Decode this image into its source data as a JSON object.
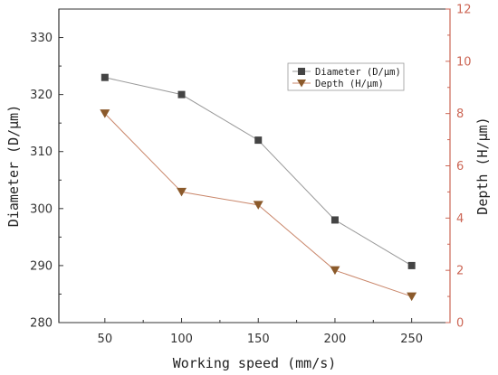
{
  "colors": {
    "left_axis": "#333333",
    "right_axis": "#cc6655",
    "diameter_line": "#999999",
    "depth_line": "#c9866a",
    "diameter_marker": "#444444",
    "depth_marker": "#8b5a2b"
  },
  "chart_data": {
    "type": "line",
    "xlabel": "Working speed (mm/s)",
    "ylabel_left": "Diameter (D/μm)",
    "ylabel_right": "Depth (H/μm)",
    "x": [
      50,
      100,
      150,
      200,
      250
    ],
    "xlim": [
      20,
      275
    ],
    "ylim_left": [
      280,
      335
    ],
    "ylim_right": [
      0,
      12
    ],
    "yticks_left": [
      280,
      290,
      300,
      310,
      320,
      330
    ],
    "yticks_right": [
      0,
      2,
      4,
      6,
      8,
      10,
      12
    ],
    "grid": false,
    "legend_position": "top-right",
    "series": [
      {
        "name": "Diameter (D/μm)",
        "axis": "left",
        "marker": "square",
        "values": [
          323,
          320,
          312,
          298,
          290
        ]
      },
      {
        "name": "Depth (H/μm)",
        "axis": "right",
        "marker": "triangle-down",
        "values": [
          8,
          5,
          4.5,
          2,
          1
        ]
      }
    ]
  }
}
